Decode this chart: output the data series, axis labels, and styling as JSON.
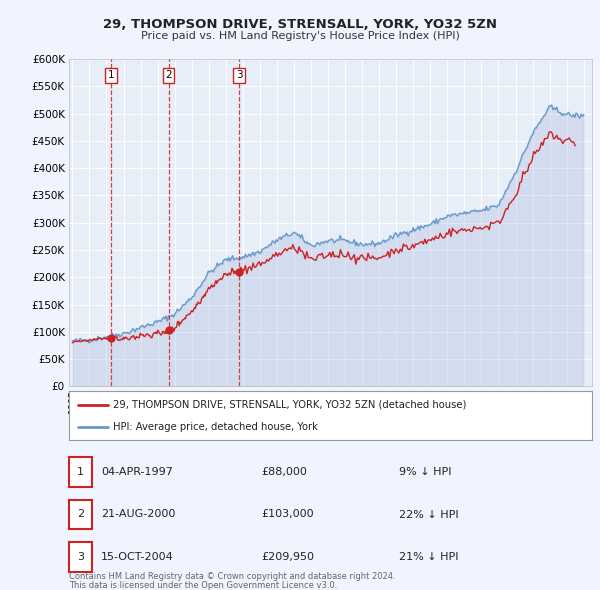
{
  "title": "29, THOMPSON DRIVE, STRENSALL, YORK, YO32 5ZN",
  "subtitle": "Price paid vs. HM Land Registry's House Price Index (HPI)",
  "background_color": "#f0f4ff",
  "plot_background": "#e8eef8",
  "ylim": [
    0,
    600000
  ],
  "yticks": [
    0,
    50000,
    100000,
    150000,
    200000,
    250000,
    300000,
    350000,
    400000,
    450000,
    500000,
    550000,
    600000
  ],
  "xlim_start": 1994.8,
  "xlim_end": 2025.5,
  "sales": [
    {
      "date_year": 1997.26,
      "price": 88000,
      "label": "1"
    },
    {
      "date_year": 2000.64,
      "price": 103000,
      "label": "2"
    },
    {
      "date_year": 2004.79,
      "price": 209950,
      "label": "3"
    }
  ],
  "sale_labels": [
    {
      "label": "1",
      "date": "04-APR-1997",
      "price": "£88,000",
      "hpi_pct": "9% ↓ HPI"
    },
    {
      "label": "2",
      "date": "21-AUG-2000",
      "price": "£103,000",
      "hpi_pct": "22% ↓ HPI"
    },
    {
      "label": "3",
      "date": "15-OCT-2004",
      "price": "£209,950",
      "hpi_pct": "21% ↓ HPI"
    }
  ],
  "legend_line1": "29, THOMPSON DRIVE, STRENSALL, YORK, YO32 5ZN (detached house)",
  "legend_line2": "HPI: Average price, detached house, York",
  "footer1": "Contains HM Land Registry data © Crown copyright and database right 2024.",
  "footer2": "This data is licensed under the Open Government Licence v3.0.",
  "hpi_color": "#6699cc",
  "price_color": "#cc2222",
  "vline_color": "#cc2222",
  "hpi_fill_color": "#aabbdd",
  "hpi_base_prices": {
    "1995": 83000,
    "1996": 85000,
    "1997": 91000,
    "1998": 97000,
    "1999": 108000,
    "2000": 118000,
    "2001": 133000,
    "2002": 163000,
    "2003": 208000,
    "2004": 232000,
    "2005": 237000,
    "2006": 247000,
    "2007": 268000,
    "2008": 282000,
    "2009": 258000,
    "2010": 267000,
    "2011": 267000,
    "2012": 260000,
    "2013": 262000,
    "2014": 277000,
    "2015": 287000,
    "2016": 297000,
    "2017": 312000,
    "2018": 317000,
    "2019": 322000,
    "2020": 332000,
    "2021": 393000,
    "2022": 463000,
    "2023": 512000,
    "2024": 498000,
    "2025": 495000
  }
}
